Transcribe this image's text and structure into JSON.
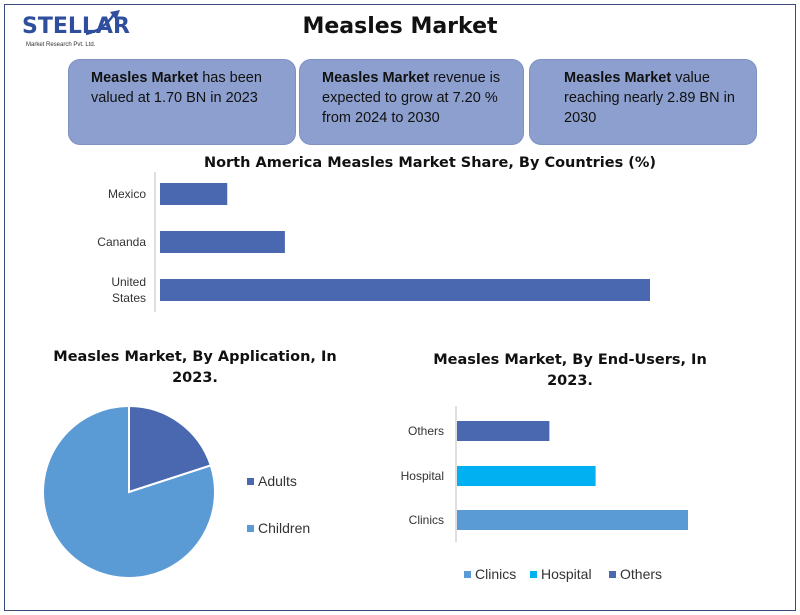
{
  "header": {
    "logo_text": "STELLAR",
    "logo_subtitle": "Market Research Pvt. Ltd.",
    "title": "Measles Market"
  },
  "cards": [
    {
      "bold": "Measles Market",
      "line1_rest": " has been",
      "line2": "valued at 1.70 BN in 2023",
      "line3": ""
    },
    {
      "bold": "Measles Market",
      "line1_rest": " revenue is",
      "line2": "expected to grow at 7.20 %",
      "line3": "from 2024 to 2030"
    },
    {
      "bold": "Measles Market",
      "line1_rest": " value",
      "line2": "reaching nearly 2.89 BN in",
      "line3": "2030"
    }
  ],
  "colors": {
    "accent_dark": "#4a68b0",
    "accent_light": "#5b9bd5",
    "accent_cyan": "#00b0f0",
    "card_bg": "#8c9fce"
  },
  "chart_data": [
    {
      "type": "bar",
      "orientation": "horizontal",
      "title": "North America Measles Market Share, By Countries (%)",
      "categories": [
        "Mexico",
        "Cananda",
        "United States"
      ],
      "values": [
        7,
        13,
        51
      ],
      "xlim": [
        0,
        60
      ],
      "grid": false,
      "color": "#4a68b0"
    },
    {
      "type": "pie",
      "title": "Measles Market, By Application, In 2023.",
      "labels": [
        "Adults",
        "Children"
      ],
      "values": [
        20,
        80
      ],
      "colors": [
        "#4a68b0",
        "#5b9bd5"
      ],
      "legend": "right"
    },
    {
      "type": "bar",
      "orientation": "horizontal",
      "title": "Measles Market, By End-Users, In 2023.",
      "categories": [
        "Others",
        "Hospital",
        "Clinics"
      ],
      "values": [
        20,
        30,
        50
      ],
      "colors": [
        "#4a68b0",
        "#00b0f0",
        "#5b9bd5"
      ],
      "legend_entries": [
        "Clinics",
        "Hospital",
        "Others"
      ],
      "legend_colors": [
        "#5b9bd5",
        "#00b0f0",
        "#4a68b0"
      ],
      "legend": "bottom",
      "xlim": [
        0,
        50
      ],
      "grid": false
    }
  ]
}
